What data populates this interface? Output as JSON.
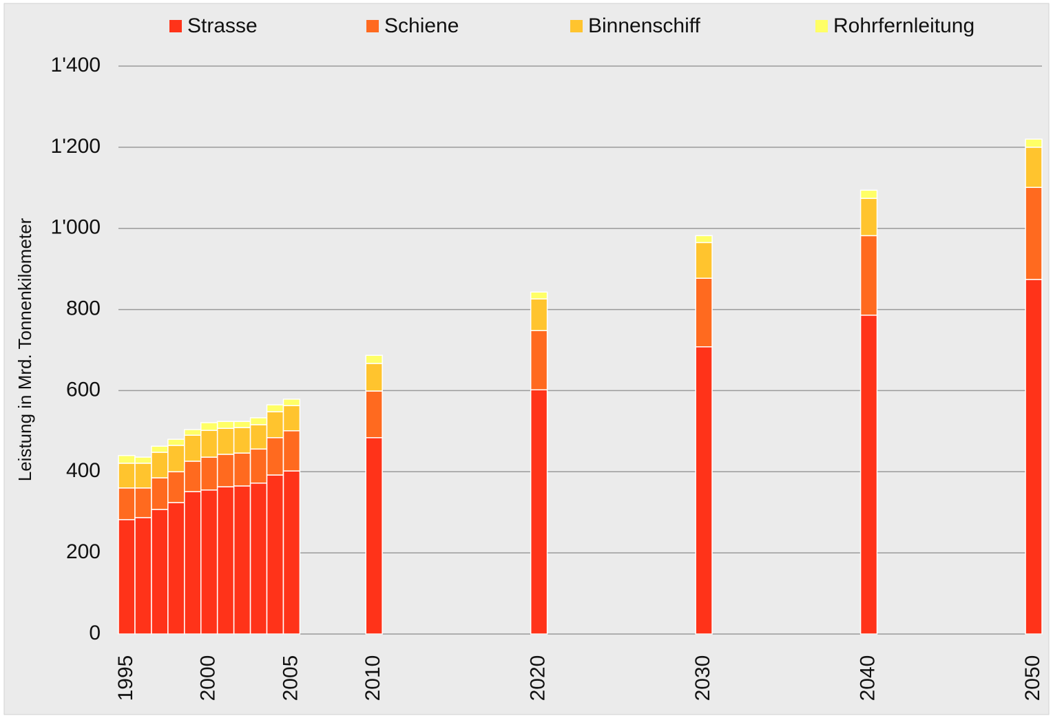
{
  "chart_data": {
    "type": "stacked_bar",
    "y_label": "Leistung in Mrd. Tonnenkilometer",
    "x": [
      1995,
      1996,
      1997,
      1998,
      1999,
      2000,
      2001,
      2002,
      2003,
      2004,
      2005,
      2010,
      2020,
      2030,
      2040,
      2050
    ],
    "series": [
      {
        "name": "Strasse",
        "color": "#ff3319",
        "values": [
          282,
          287,
          307,
          324,
          351,
          355,
          363,
          365,
          372,
          392,
          402,
          484,
          602,
          708,
          786,
          874
        ]
      },
      {
        "name": "Schiene",
        "color": "#ff6a1f",
        "values": [
          78,
          73,
          78,
          76,
          75,
          81,
          80,
          81,
          84,
          92,
          99,
          115,
          146,
          169,
          196,
          227
        ]
      },
      {
        "name": "Binnenschiff",
        "color": "#ffc42e",
        "values": [
          61,
          61,
          63,
          65,
          64,
          66,
          64,
          63,
          60,
          64,
          62,
          68,
          78,
          88,
          92,
          99
        ]
      },
      {
        "name": "Rohrfernleitung",
        "color": "#ffff66",
        "values": [
          19,
          15,
          15,
          15,
          14,
          19,
          17,
          15,
          17,
          17,
          16,
          20,
          17,
          17,
          20,
          20
        ]
      }
    ],
    "xlim": [
      1994.5,
      2050.5
    ],
    "xticks": [
      1995,
      2000,
      2005,
      2010,
      2020,
      2030,
      2040,
      2050
    ],
    "ylim": [
      0,
      1400
    ],
    "yticks": [
      0,
      200,
      400,
      600,
      800,
      {
        "value": 1000,
        "label": "1'000"
      },
      {
        "value": 1200,
        "label": "1'200"
      },
      {
        "value": 1400,
        "label": "1'400"
      }
    ],
    "grid": true,
    "legend": "top"
  }
}
